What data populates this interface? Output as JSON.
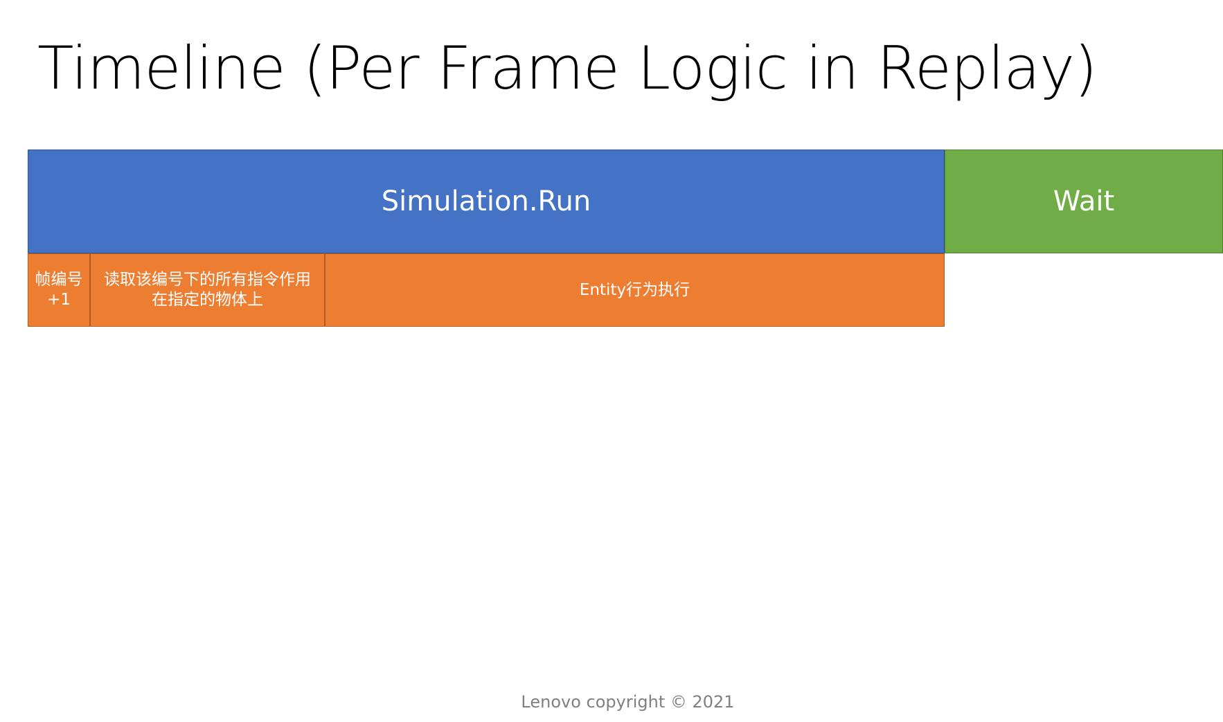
{
  "slide": {
    "title": "Timeline (Per Frame Logic in Replay)",
    "footer": "Lenovo copyright © 2021"
  },
  "timeline": {
    "main": {
      "run_label": "Simulation.Run",
      "wait_label": "Wait",
      "run_color": "#4472c4",
      "wait_color": "#70ad47"
    },
    "steps": [
      {
        "label": "帧编号+1"
      },
      {
        "label": "读取该编号下的所有指令作用在指定的物体上"
      },
      {
        "label": "Entity行为执行"
      }
    ],
    "step_color": "#ed7d31"
  }
}
